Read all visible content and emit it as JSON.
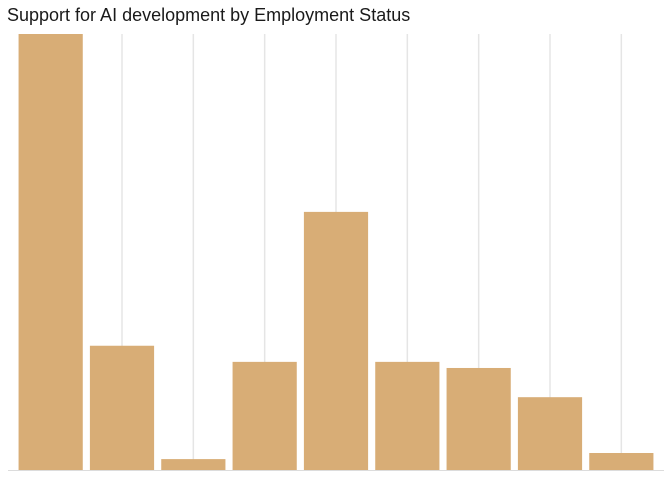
{
  "chart_data": {
    "type": "bar",
    "title": "Support for AI development by Employment Status",
    "categories": [
      "",
      "",
      "",
      "",
      "",
      "",
      "",
      "",
      ""
    ],
    "values": [
      100,
      28.5,
      2.5,
      24.8,
      59.2,
      24.8,
      23.4,
      16.7,
      3.9
    ],
    "ylim": [
      0,
      100
    ],
    "xlabel": "",
    "ylabel": "",
    "grid": "vertical",
    "legend": "none",
    "bar_color": "#d8ad76",
    "grid_color": "#e5e5e5",
    "axis_color": "#dcdcdc"
  }
}
